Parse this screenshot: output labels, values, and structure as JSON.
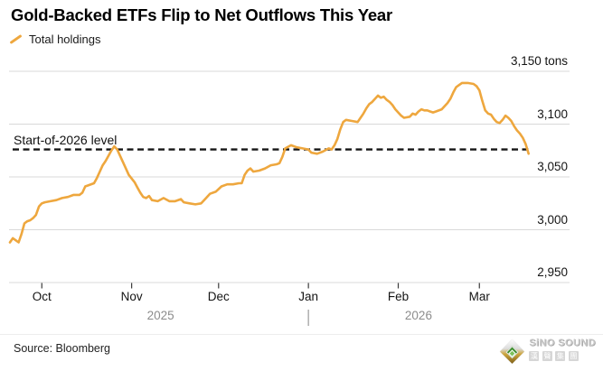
{
  "title": "Gold-Backed ETFs Flip to Net Outflows This Year",
  "legend": {
    "label": "Total holdings"
  },
  "source": "Source: Bloomberg",
  "watermark": {
    "name": "SiNO SOUND",
    "subtitle": "漢聲集團",
    "chars": [
      "漢",
      "聲",
      "集",
      "團"
    ]
  },
  "colors": {
    "line": "#EEA73E",
    "reference": "#161616",
    "grid": "#d9d9d9",
    "tick": "#3a3a3a",
    "year_divider": "#9a9a9a"
  },
  "chart_data": {
    "type": "line",
    "title": "Gold-Backed ETFs Flip to Net Outflows This Year",
    "series_name": "Total holdings",
    "unit": "tons",
    "ylim": [
      2950,
      3150
    ],
    "grid": true,
    "legend_position": "top-left",
    "start_date": "2025-09-20",
    "y_ticks": [
      {
        "label": "3,150 tons",
        "value": 3150
      },
      {
        "label": "3,100",
        "value": 3100
      },
      {
        "label": "3,050",
        "value": 3050
      },
      {
        "label": "3,000",
        "value": 3000
      },
      {
        "label": "2,950",
        "value": 2950
      }
    ],
    "x_ticks": [
      {
        "label": "Oct",
        "day": 11
      },
      {
        "label": "Nov",
        "day": 42
      },
      {
        "label": "Dec",
        "day": 72
      },
      {
        "label": "Jan",
        "day": 103
      },
      {
        "label": "Feb",
        "day": 134
      },
      {
        "label": "Mar",
        "day": 162
      }
    ],
    "year_labels": [
      {
        "label": "2025",
        "center_day": 52
      },
      {
        "label": "2026",
        "center_day": 141
      }
    ],
    "year_divider_day": 103,
    "reference_line": {
      "label": "Start-of-2026 level",
      "value": 3076
    },
    "points": [
      [
        0,
        2988
      ],
      [
        1,
        2992
      ],
      [
        2,
        2990
      ],
      [
        3,
        2988
      ],
      [
        4,
        2996
      ],
      [
        5,
        3006
      ],
      [
        6,
        3008
      ],
      [
        7,
        3009
      ],
      [
        8,
        3011
      ],
      [
        9,
        3014
      ],
      [
        10,
        3022
      ],
      [
        11,
        3025
      ],
      [
        12,
        3026
      ],
      [
        14,
        3027
      ],
      [
        16,
        3028
      ],
      [
        18,
        3030
      ],
      [
        20,
        3031
      ],
      [
        22,
        3033
      ],
      [
        24,
        3033
      ],
      [
        25,
        3035
      ],
      [
        26,
        3041
      ],
      [
        27,
        3042
      ],
      [
        29,
        3044
      ],
      [
        30,
        3049
      ],
      [
        31,
        3055
      ],
      [
        32,
        3061
      ],
      [
        33,
        3065
      ],
      [
        34,
        3070
      ],
      [
        35,
        3075
      ],
      [
        36,
        3079
      ],
      [
        37,
        3076
      ],
      [
        38,
        3070
      ],
      [
        39,
        3064
      ],
      [
        40,
        3058
      ],
      [
        41,
        3052
      ],
      [
        43,
        3045
      ],
      [
        44,
        3040
      ],
      [
        45,
        3035
      ],
      [
        46,
        3031
      ],
      [
        47,
        3030
      ],
      [
        48,
        3032
      ],
      [
        49,
        3028
      ],
      [
        51,
        3027
      ],
      [
        53,
        3030
      ],
      [
        55,
        3027
      ],
      [
        57,
        3027
      ],
      [
        59,
        3029
      ],
      [
        60,
        3026
      ],
      [
        62,
        3025
      ],
      [
        64,
        3024
      ],
      [
        66,
        3025
      ],
      [
        67,
        3028
      ],
      [
        69,
        3034
      ],
      [
        71,
        3036
      ],
      [
        73,
        3041
      ],
      [
        75,
        3043
      ],
      [
        77,
        3043
      ],
      [
        79,
        3044
      ],
      [
        80,
        3044
      ],
      [
        81,
        3052
      ],
      [
        82,
        3056
      ],
      [
        83,
        3058
      ],
      [
        84,
        3055
      ],
      [
        86,
        3056
      ],
      [
        88,
        3058
      ],
      [
        90,
        3061
      ],
      [
        92,
        3062
      ],
      [
        93,
        3063
      ],
      [
        94,
        3069
      ],
      [
        95,
        3077
      ],
      [
        97,
        3080
      ],
      [
        99,
        3078
      ],
      [
        101,
        3077
      ],
      [
        103,
        3076
      ],
      [
        104,
        3073
      ],
      [
        106,
        3072
      ],
      [
        108,
        3074
      ],
      [
        110,
        3077
      ],
      [
        111,
        3076
      ],
      [
        112,
        3080
      ],
      [
        113,
        3086
      ],
      [
        114,
        3095
      ],
      [
        115,
        3102
      ],
      [
        116,
        3104
      ],
      [
        118,
        3103
      ],
      [
        120,
        3102
      ],
      [
        121,
        3106
      ],
      [
        122,
        3110
      ],
      [
        123,
        3115
      ],
      [
        124,
        3119
      ],
      [
        125,
        3121
      ],
      [
        126,
        3124
      ],
      [
        127,
        3127
      ],
      [
        128,
        3125
      ],
      [
        129,
        3126
      ],
      [
        130,
        3123
      ],
      [
        131,
        3121
      ],
      [
        132,
        3118
      ],
      [
        133,
        3114
      ],
      [
        134,
        3111
      ],
      [
        135,
        3108
      ],
      [
        136,
        3106
      ],
      [
        138,
        3107
      ],
      [
        139,
        3110
      ],
      [
        140,
        3109
      ],
      [
        141,
        3112
      ],
      [
        142,
        3114
      ],
      [
        143,
        3113
      ],
      [
        144,
        3113
      ],
      [
        145,
        3112
      ],
      [
        146,
        3111
      ],
      [
        147,
        3112
      ],
      [
        149,
        3114
      ],
      [
        150,
        3117
      ],
      [
        151,
        3120
      ],
      [
        152,
        3124
      ],
      [
        153,
        3130
      ],
      [
        154,
        3135
      ],
      [
        155,
        3137
      ],
      [
        156,
        3139
      ],
      [
        158,
        3139
      ],
      [
        160,
        3138
      ],
      [
        161,
        3136
      ],
      [
        162,
        3132
      ],
      [
        163,
        3122
      ],
      [
        164,
        3113
      ],
      [
        165,
        3110
      ],
      [
        166,
        3109
      ],
      [
        167,
        3105
      ],
      [
        168,
        3102
      ],
      [
        169,
        3101
      ],
      [
        170,
        3104
      ],
      [
        171,
        3108
      ],
      [
        172,
        3106
      ],
      [
        173,
        3103
      ],
      [
        174,
        3098
      ],
      [
        175,
        3094
      ],
      [
        176,
        3091
      ],
      [
        177,
        3087
      ],
      [
        178,
        3081
      ],
      [
        179,
        3072
      ]
    ]
  }
}
